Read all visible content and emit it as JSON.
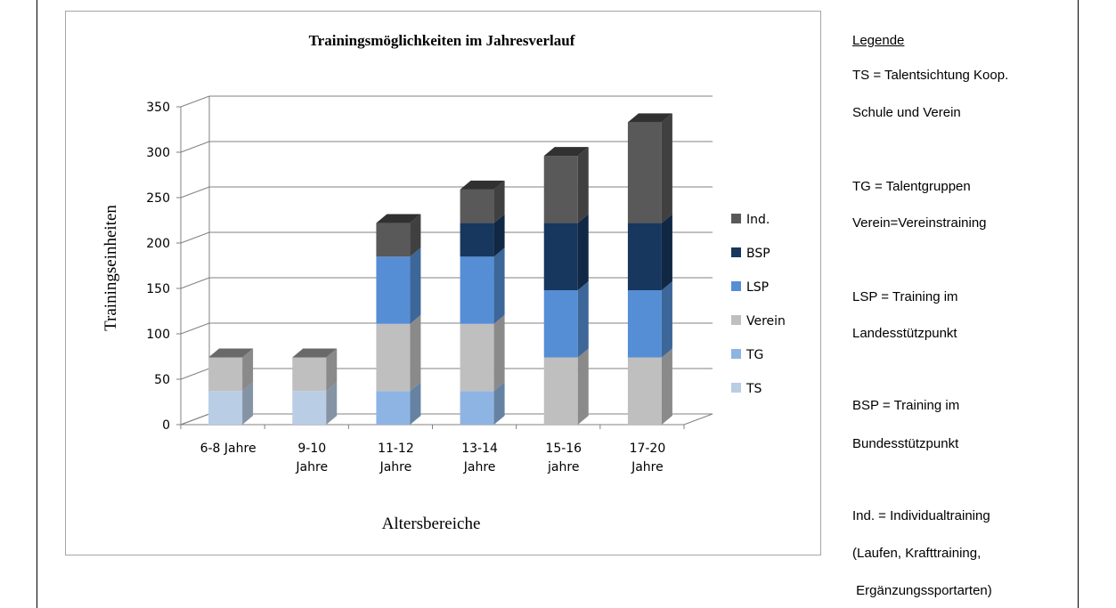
{
  "chart_data": {
    "type": "bar",
    "stacked": true,
    "three_d": true,
    "title": "Trainingsmöglichkeiten im Jahresverlauf",
    "xlabel": "Altersbereiche",
    "ylabel": "Trainingseinheiten",
    "ylim": [
      0,
      350
    ],
    "yticks": [
      0,
      50,
      100,
      150,
      200,
      250,
      300,
      350
    ],
    "ytick_labels": [
      "0",
      "50",
      "100",
      "150",
      "200",
      "250",
      "300",
      "350"
    ],
    "grid": true,
    "legend_position": "right",
    "categories": [
      [
        "6-8 Jahre"
      ],
      [
        "9-10",
        "Jahre"
      ],
      [
        "11-12",
        "Jahre"
      ],
      [
        "13-14",
        "Jahre"
      ],
      [
        "15-16",
        "jahre"
      ],
      [
        "17-20",
        "Jahre"
      ]
    ],
    "series": [
      {
        "name": "TS",
        "color": "#b9cde5",
        "values": [
          37,
          37,
          0,
          0,
          0,
          0
        ]
      },
      {
        "name": "TG",
        "color": "#8eb4e3",
        "values": [
          0,
          0,
          37,
          37,
          0,
          0
        ]
      },
      {
        "name": "Verein",
        "color": "#bfbfbf",
        "values": [
          37,
          37,
          74,
          74,
          74,
          74
        ]
      },
      {
        "name": "LSP",
        "color": "#558ed5",
        "values": [
          0,
          0,
          74,
          74,
          74,
          74
        ]
      },
      {
        "name": "BSP",
        "color": "#17375e",
        "values": [
          0,
          0,
          0,
          37,
          74,
          74
        ]
      },
      {
        "name": "Ind.",
        "color": "#595959",
        "values": [
          0,
          0,
          37,
          37,
          74,
          111
        ]
      }
    ]
  },
  "legend_panel": {
    "heading": "Legende",
    "lines": [
      "TS = Talentsichtung Koop.",
      "Schule und Verein",
      "TG = Talentgruppen",
      "Verein=Vereinstraining",
      "LSP = Training im",
      "Landesstützpunkt",
      "BSP = Training im",
      "Bundesstützpunkt",
      "Ind. = Individualtraining",
      "(Laufen, Krafttraining,",
      " Ergänzungssportarten)"
    ]
  }
}
